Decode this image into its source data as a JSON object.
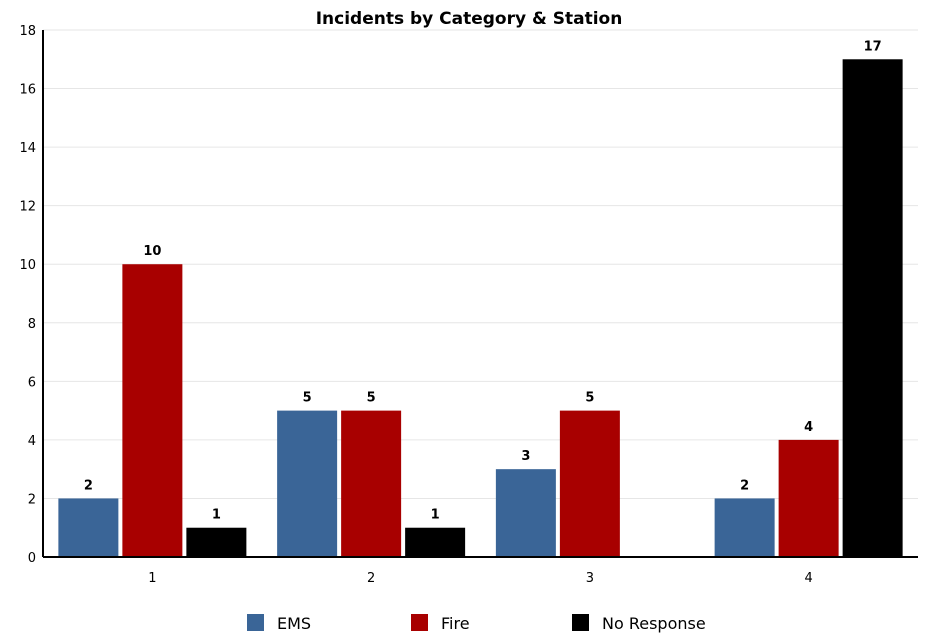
{
  "chart_data": {
    "type": "bar",
    "title": "Incidents by Category & Station",
    "xlabel": "",
    "ylabel": "",
    "categories": [
      "1",
      "2",
      "3",
      "4"
    ],
    "series": [
      {
        "name": "EMS",
        "color": "#3a6597",
        "values": [
          2,
          5,
          3,
          2
        ]
      },
      {
        "name": "Fire",
        "color": "#a80000",
        "values": [
          10,
          5,
          5,
          4
        ]
      },
      {
        "name": "No Response",
        "color": "#000000",
        "values": [
          1,
          1,
          null,
          17
        ]
      }
    ],
    "ylim": [
      0,
      18
    ],
    "yticks": [
      0,
      2,
      4,
      6,
      8,
      10,
      12,
      14,
      16,
      18
    ],
    "grid": true,
    "legend": "bottom"
  }
}
